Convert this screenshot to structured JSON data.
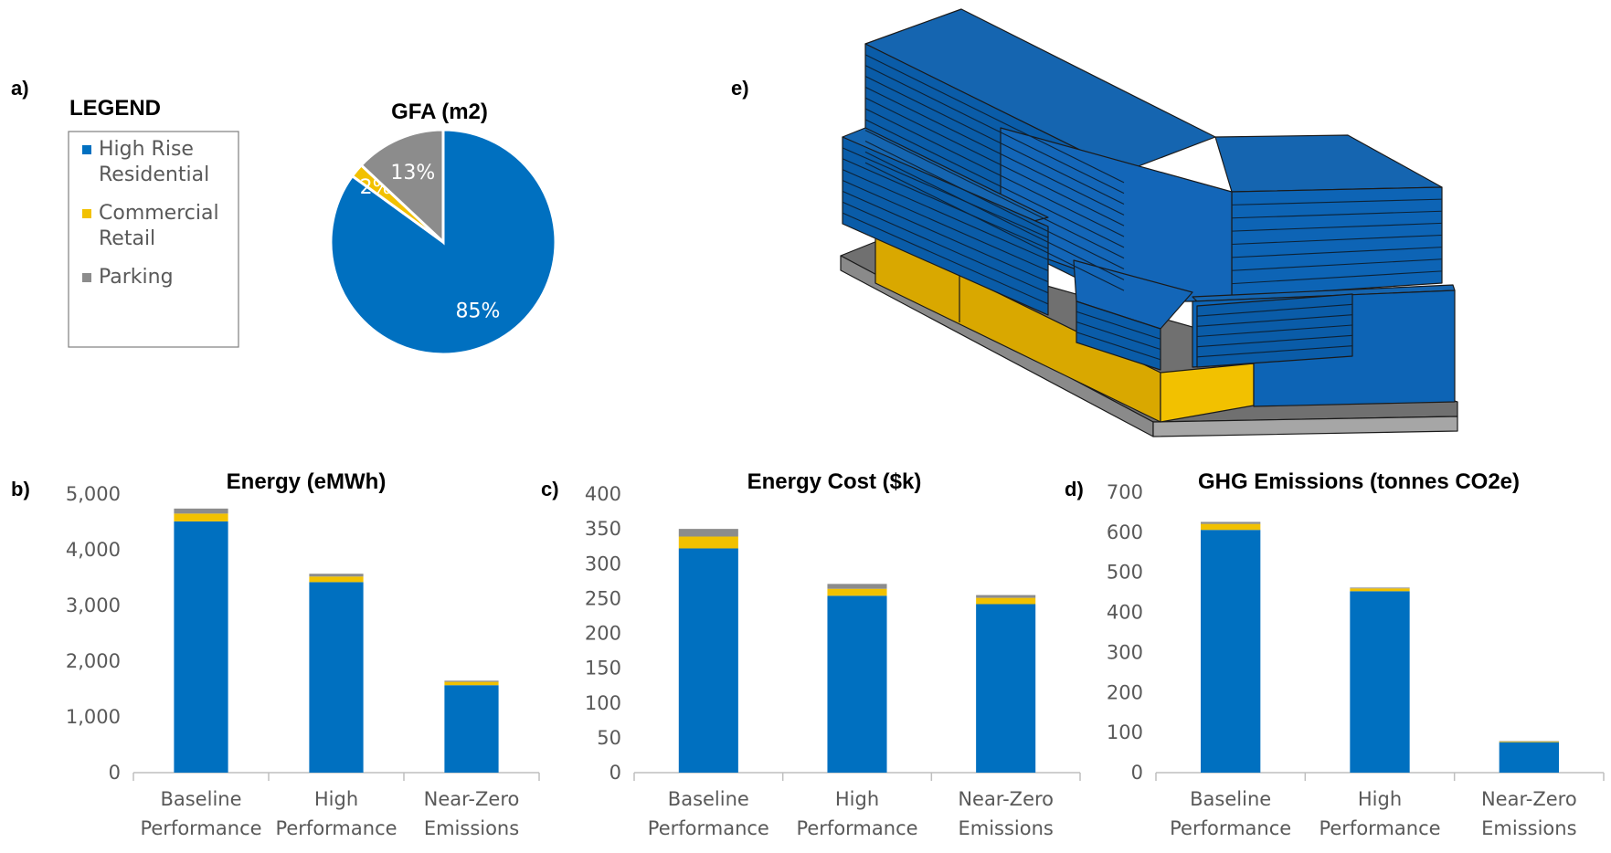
{
  "panels": {
    "a": "a)",
    "b": "b)",
    "c": "c)",
    "d": "d)",
    "e": "e)"
  },
  "legend": {
    "title": "LEGEND",
    "items": [
      {
        "lines": [
          "High Rise",
          "Residential"
        ],
        "color": "#0070C0"
      },
      {
        "lines": [
          "Commercial",
          "Retail"
        ],
        "color": "#F2C100"
      },
      {
        "lines": [
          "Parking"
        ],
        "color": "#8C8C8C"
      }
    ]
  },
  "colors": {
    "residential": "#0070C0",
    "retail": "#F2C100",
    "parking": "#8C8C8C"
  },
  "chart_data": [
    {
      "type": "pie",
      "title": "GFA (m2)",
      "slices": [
        {
          "name": "High Rise Residential",
          "value": 85,
          "label": "85%",
          "color": "#0070C0"
        },
        {
          "name": "Commercial Retail",
          "value": 2,
          "label": "2%",
          "color": "#F2C100"
        },
        {
          "name": "Parking",
          "value": 13,
          "label": "13%",
          "color": "#8C8C8C"
        }
      ]
    },
    {
      "type": "bar",
      "stacked": true,
      "title": "Energy (eMWh)",
      "categories": [
        [
          "Baseline",
          "Performance"
        ],
        [
          "High",
          "Performance"
        ],
        [
          "Near-Zero",
          "Emissions"
        ]
      ],
      "series": [
        {
          "name": "High Rise Residential",
          "color": "#0070C0",
          "values": [
            4510,
            3420,
            1570
          ]
        },
        {
          "name": "Commercial Retail",
          "color": "#F2C100",
          "values": [
            140,
            100,
            60
          ]
        },
        {
          "name": "Parking",
          "color": "#8C8C8C",
          "values": [
            90,
            50,
            20
          ]
        }
      ],
      "ylim": [
        0,
        5000
      ],
      "yticks": [
        0,
        1000,
        2000,
        3000,
        4000,
        5000
      ],
      "ytick_labels": [
        "0",
        "1,000",
        "2,000",
        "3,000",
        "4,000",
        "5,000"
      ]
    },
    {
      "type": "bar",
      "stacked": true,
      "title": "Energy Cost ($k)",
      "categories": [
        [
          "Baseline",
          "Performance"
        ],
        [
          "High",
          "Performance"
        ],
        [
          "Near-Zero",
          "Emissions"
        ]
      ],
      "series": [
        {
          "name": "High Rise Residential",
          "color": "#0070C0",
          "values": [
            322,
            254,
            242
          ]
        },
        {
          "name": "Commercial Retail",
          "color": "#F2C100",
          "values": [
            17,
            10,
            9
          ]
        },
        {
          "name": "Parking",
          "color": "#8C8C8C",
          "values": [
            11,
            7,
            4
          ]
        }
      ],
      "ylim": [
        0,
        400
      ],
      "yticks": [
        0,
        50,
        100,
        150,
        200,
        250,
        300,
        350,
        400
      ],
      "ytick_labels": [
        "0",
        "50",
        "100",
        "150",
        "200",
        "250",
        "300",
        "350",
        "400"
      ]
    },
    {
      "type": "bar",
      "stacked": true,
      "title": "GHG Emissions (tonnes CO2e)",
      "categories": [
        [
          "Baseline",
          "Performance"
        ],
        [
          "High",
          "Performance"
        ],
        [
          "Near-Zero",
          "Emissions"
        ]
      ],
      "series": [
        {
          "name": "High Rise Residential",
          "color": "#0070C0",
          "values": [
            606,
            453,
            76
          ]
        },
        {
          "name": "Commercial Retail",
          "color": "#F2C100",
          "values": [
            15,
            7,
            2
          ]
        },
        {
          "name": "Parking",
          "color": "#8C8C8C",
          "values": [
            5,
            2,
            1
          ]
        }
      ],
      "ylim": [
        0,
        700
      ],
      "yticks": [
        0,
        100,
        200,
        300,
        400,
        500,
        600,
        700
      ],
      "ytick_labels": [
        "0",
        "100",
        "200",
        "300",
        "400",
        "500",
        "600",
        "700"
      ]
    }
  ]
}
